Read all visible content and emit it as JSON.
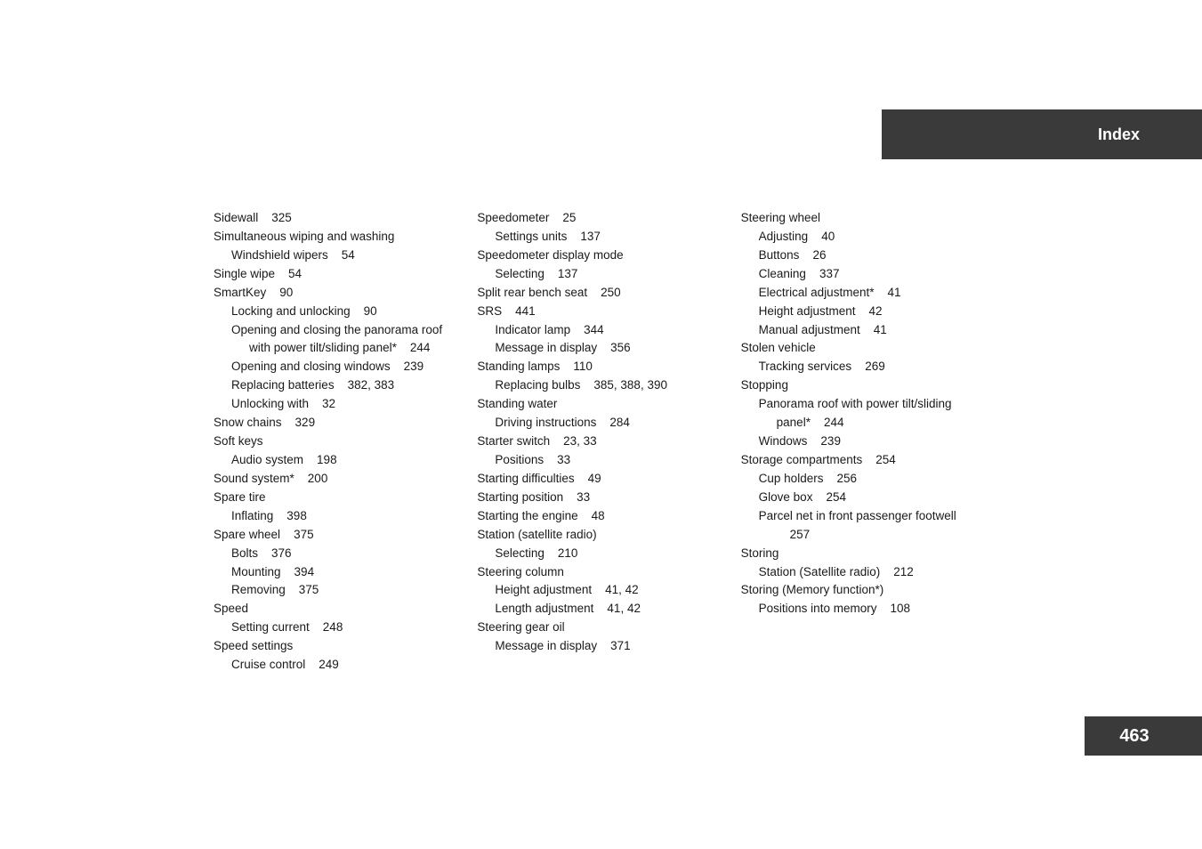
{
  "header": {
    "title": "Index"
  },
  "footer": {
    "page_number": "463"
  },
  "columns": {
    "col1": [
      {
        "level": 0,
        "text": "Sidewall",
        "page": "325"
      },
      {
        "level": 0,
        "text": "Simultaneous wiping and washing",
        "page": ""
      },
      {
        "level": 1,
        "text": "Windshield wipers",
        "page": "54"
      },
      {
        "level": 0,
        "text": "Single wipe",
        "page": "54"
      },
      {
        "level": 0,
        "text": "SmartKey",
        "page": "90"
      },
      {
        "level": 1,
        "text": "Locking and unlocking",
        "page": "90"
      },
      {
        "level": 1,
        "text": "Opening and closing the panorama roof with power tilt/sliding panel*",
        "page": "244",
        "hang": true
      },
      {
        "level": 1,
        "text": "Opening and closing windows",
        "page": "239"
      },
      {
        "level": 1,
        "text": "Replacing batteries",
        "page": "382, 383"
      },
      {
        "level": 1,
        "text": "Unlocking with",
        "page": "32"
      },
      {
        "level": 0,
        "text": "Snow chains",
        "page": "329"
      },
      {
        "level": 0,
        "text": "Soft keys",
        "page": ""
      },
      {
        "level": 1,
        "text": "Audio system",
        "page": "198"
      },
      {
        "level": 0,
        "text": "Sound system*",
        "page": "200"
      },
      {
        "level": 0,
        "text": "Spare tire",
        "page": ""
      },
      {
        "level": 1,
        "text": "Inflating",
        "page": "398"
      },
      {
        "level": 0,
        "text": "Spare wheel",
        "page": "375"
      },
      {
        "level": 1,
        "text": "Bolts",
        "page": "376"
      },
      {
        "level": 1,
        "text": "Mounting",
        "page": "394"
      },
      {
        "level": 1,
        "text": "Removing",
        "page": "375"
      },
      {
        "level": 0,
        "text": "Speed",
        "page": ""
      },
      {
        "level": 1,
        "text": "Setting current",
        "page": "248"
      },
      {
        "level": 0,
        "text": "Speed settings",
        "page": ""
      },
      {
        "level": 1,
        "text": "Cruise control",
        "page": "249"
      }
    ],
    "col2": [
      {
        "level": 0,
        "text": "Speedometer",
        "page": "25"
      },
      {
        "level": 1,
        "text": "Settings units",
        "page": "137"
      },
      {
        "level": 0,
        "text": "Speedometer display mode",
        "page": ""
      },
      {
        "level": 1,
        "text": "Selecting",
        "page": "137"
      },
      {
        "level": 0,
        "text": "Split rear bench seat",
        "page": "250"
      },
      {
        "level": 0,
        "text": "SRS",
        "page": "441"
      },
      {
        "level": 1,
        "text": "Indicator lamp",
        "page": "344"
      },
      {
        "level": 1,
        "text": "Message in display",
        "page": "356"
      },
      {
        "level": 0,
        "text": "Standing lamps",
        "page": "110"
      },
      {
        "level": 1,
        "text": "Replacing bulbs",
        "page": "385, 388, 390"
      },
      {
        "level": 0,
        "text": "Standing water",
        "page": ""
      },
      {
        "level": 1,
        "text": "Driving instructions",
        "page": "284"
      },
      {
        "level": 0,
        "text": "Starter switch",
        "page": "23, 33"
      },
      {
        "level": 1,
        "text": "Positions",
        "page": "33"
      },
      {
        "level": 0,
        "text": "Starting difficulties",
        "page": "49"
      },
      {
        "level": 0,
        "text": "Starting position",
        "page": "33"
      },
      {
        "level": 0,
        "text": "Starting the engine",
        "page": "48"
      },
      {
        "level": 0,
        "text": "Station (satellite radio)",
        "page": ""
      },
      {
        "level": 1,
        "text": "Selecting",
        "page": "210"
      },
      {
        "level": 0,
        "text": "Steering column",
        "page": ""
      },
      {
        "level": 1,
        "text": "Height adjustment",
        "page": "41, 42"
      },
      {
        "level": 1,
        "text": "Length adjustment",
        "page": "41, 42"
      },
      {
        "level": 0,
        "text": "Steering gear oil",
        "page": ""
      },
      {
        "level": 1,
        "text": "Message in display",
        "page": "371"
      }
    ],
    "col3": [
      {
        "level": 0,
        "text": "Steering wheel",
        "page": ""
      },
      {
        "level": 1,
        "text": "Adjusting",
        "page": "40"
      },
      {
        "level": 1,
        "text": "Buttons",
        "page": "26"
      },
      {
        "level": 1,
        "text": "Cleaning",
        "page": "337"
      },
      {
        "level": 1,
        "text": "Electrical adjustment*",
        "page": "41"
      },
      {
        "level": 1,
        "text": "Height adjustment",
        "page": "42"
      },
      {
        "level": 1,
        "text": "Manual adjustment",
        "page": "41"
      },
      {
        "level": 0,
        "text": "Stolen vehicle",
        "page": ""
      },
      {
        "level": 1,
        "text": "Tracking services",
        "page": "269"
      },
      {
        "level": 0,
        "text": "Stopping",
        "page": ""
      },
      {
        "level": 1,
        "text": "Panorama roof with power tilt/sliding panel*",
        "page": "244",
        "hang": true
      },
      {
        "level": 1,
        "text": "Windows",
        "page": "239"
      },
      {
        "level": 0,
        "text": "Storage compartments",
        "page": "254"
      },
      {
        "level": 1,
        "text": "Cup holders",
        "page": "256"
      },
      {
        "level": 1,
        "text": "Glove box",
        "page": "254"
      },
      {
        "level": 1,
        "text": "Parcel net in front passenger footwell",
        "page": "257",
        "hang": true
      },
      {
        "level": 0,
        "text": "Storing",
        "page": ""
      },
      {
        "level": 1,
        "text": "Station (Satellite radio)",
        "page": "212"
      },
      {
        "level": 0,
        "text": "Storing (Memory function*)",
        "page": ""
      },
      {
        "level": 1,
        "text": "Positions into memory",
        "page": "108"
      }
    ]
  }
}
